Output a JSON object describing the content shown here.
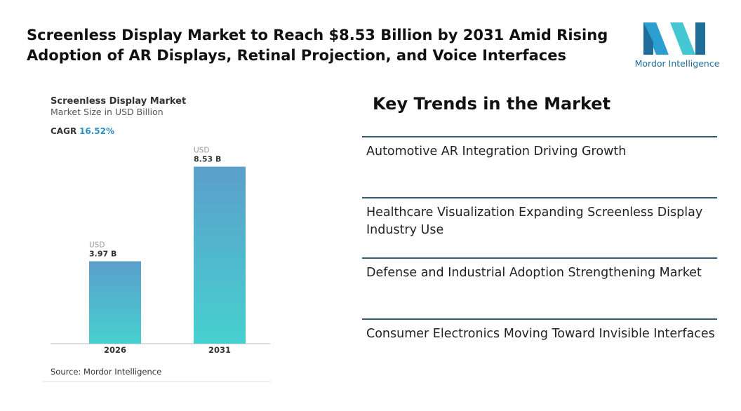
{
  "header": {
    "title": "Screenless Display Market to Reach $8.53 Billion by 2031 Amid Rising Adoption of AR Displays, Retinal Projection, and Voice Interfaces",
    "logo_text": "Mordor Intelligence"
  },
  "chart_data": {
    "type": "bar",
    "title": "Screenless Display Market",
    "subtitle": "Market Size in USD Billion",
    "cagr_label": "CAGR",
    "cagr_value": "16.52%",
    "categories": [
      "2026",
      "2031"
    ],
    "values": [
      3.97,
      8.53
    ],
    "value_labels": [
      "3.97 B",
      "8.53 B"
    ],
    "value_label_prefix": "USD",
    "gradient": [
      "#5b9fcb",
      "#46d0cf"
    ],
    "ylim": [
      0,
      9.7
    ],
    "source": "Source: Mordor Intelligence"
  },
  "trends": {
    "title": "Key Trends in the Market",
    "items": [
      "Automotive AR Integration Driving Growth",
      "Healthcare Visualization Expanding Screenless Display Industry Use",
      "Defense and Industrial Adoption Strengthening Market",
      "Consumer Electronics Moving Toward Invisible Interfaces"
    ]
  }
}
